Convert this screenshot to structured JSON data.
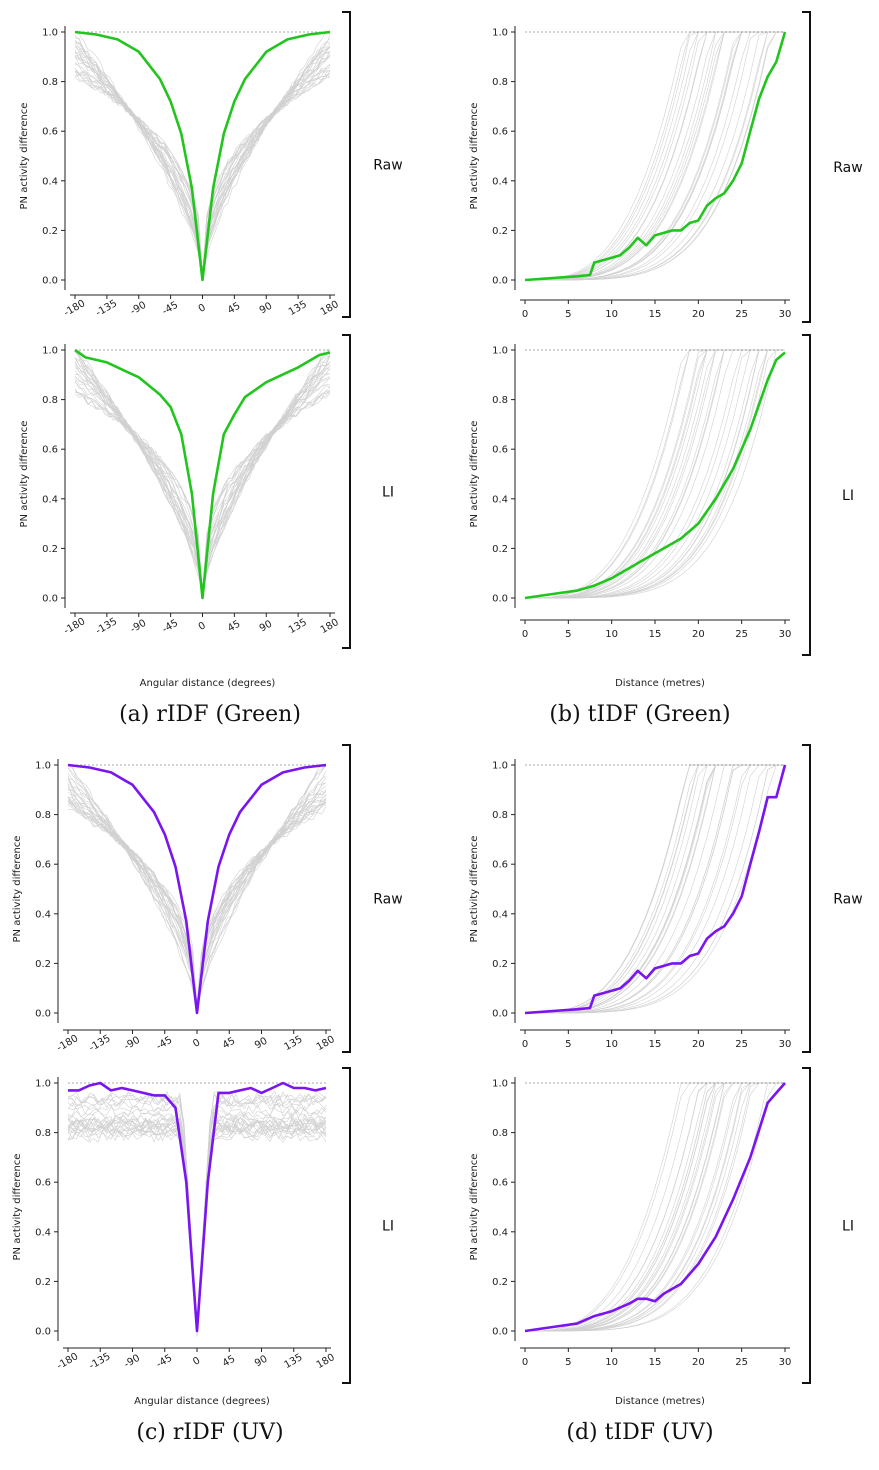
{
  "colors": {
    "green": "#22c41e",
    "uv": "#7a14f0",
    "trials": "#000000",
    "reference": "#aaaaaa"
  },
  "ylabel": "PN activity difference",
  "yticks": [
    "0.0",
    "0.2",
    "0.4",
    "0.6",
    "0.8",
    "1.0"
  ],
  "rotation": {
    "xlabel": "Angular distance (degrees)",
    "xticks": [
      "-180",
      "-135",
      "-90",
      "-45",
      "0",
      "45",
      "90",
      "135",
      "180"
    ]
  },
  "translation": {
    "xlabel": "Distance (metres)",
    "xticks": [
      "0",
      "5",
      "10",
      "15",
      "20",
      "25",
      "30"
    ]
  },
  "brackets": {
    "raw": "Raw",
    "li": "LI"
  },
  "captions": {
    "a": "(a) rIDF (Green)",
    "b": "(b) tIDF (Green)",
    "c": "(c) rIDF (UV)",
    "d": "(d) tIDF (UV)"
  },
  "chart_data": [
    {
      "panel": "a",
      "type": "line",
      "row": "Raw",
      "color": "green",
      "x": [
        -180,
        -150,
        -120,
        -90,
        -60,
        -45,
        -30,
        -15,
        0,
        15,
        30,
        45,
        60,
        90,
        120,
        150,
        180
      ],
      "y": [
        1.0,
        0.99,
        0.97,
        0.92,
        0.81,
        0.72,
        0.59,
        0.37,
        0.0,
        0.37,
        0.59,
        0.72,
        0.81,
        0.92,
        0.97,
        0.99,
        1.0
      ],
      "xlim": [
        -180,
        180
      ],
      "ylim": [
        0,
        1
      ]
    },
    {
      "panel": "a",
      "type": "line",
      "row": "LI",
      "color": "green",
      "x": [
        -180,
        -165,
        -150,
        -135,
        -90,
        -60,
        -45,
        -30,
        -15,
        0,
        15,
        30,
        45,
        60,
        90,
        135,
        165,
        180
      ],
      "y": [
        1.0,
        0.97,
        0.96,
        0.95,
        0.89,
        0.82,
        0.77,
        0.66,
        0.42,
        0.0,
        0.42,
        0.66,
        0.74,
        0.81,
        0.87,
        0.93,
        0.98,
        0.99
      ],
      "xlim": [
        -180,
        180
      ],
      "ylim": [
        0,
        1
      ]
    },
    {
      "panel": "b",
      "type": "line",
      "row": "Raw",
      "color": "green",
      "x": [
        0,
        2,
        4,
        6,
        7.5,
        8,
        10,
        11,
        12,
        13,
        14,
        15,
        16,
        17,
        18,
        19,
        20,
        21,
        22,
        23,
        24,
        25,
        26,
        27,
        28,
        29,
        30
      ],
      "y": [
        0.0,
        0.005,
        0.01,
        0.015,
        0.02,
        0.07,
        0.09,
        0.1,
        0.13,
        0.17,
        0.14,
        0.18,
        0.19,
        0.2,
        0.2,
        0.23,
        0.24,
        0.3,
        0.33,
        0.35,
        0.4,
        0.47,
        0.6,
        0.73,
        0.82,
        0.88,
        1.0
      ],
      "xlim": [
        0,
        30
      ],
      "ylim": [
        0,
        1
      ]
    },
    {
      "panel": "b",
      "type": "line",
      "row": "LI",
      "color": "green",
      "x": [
        0,
        2,
        4,
        6,
        8,
        10,
        12,
        14,
        16,
        18,
        20,
        22,
        24,
        26,
        28,
        29,
        30
      ],
      "y": [
        0.0,
        0.01,
        0.02,
        0.03,
        0.05,
        0.08,
        0.12,
        0.16,
        0.2,
        0.24,
        0.3,
        0.4,
        0.52,
        0.68,
        0.88,
        0.96,
        0.99
      ],
      "xlim": [
        0,
        30
      ],
      "ylim": [
        0,
        1
      ]
    },
    {
      "panel": "c",
      "type": "line",
      "row": "Raw",
      "color": "uv",
      "x": [
        -180,
        -150,
        -120,
        -90,
        -60,
        -45,
        -30,
        -15,
        0,
        15,
        30,
        45,
        60,
        90,
        120,
        150,
        180
      ],
      "y": [
        1.0,
        0.99,
        0.97,
        0.92,
        0.81,
        0.72,
        0.59,
        0.37,
        0.0,
        0.37,
        0.59,
        0.72,
        0.81,
        0.92,
        0.97,
        0.99,
        1.0
      ],
      "xlim": [
        -180,
        180
      ],
      "ylim": [
        0,
        1
      ]
    },
    {
      "panel": "c",
      "type": "line",
      "row": "LI",
      "color": "uv",
      "x": [
        -180,
        -165,
        -150,
        -135,
        -120,
        -105,
        -90,
        -75,
        -60,
        -45,
        -30,
        -15,
        -10,
        -5,
        0,
        5,
        10,
        15,
        30,
        45,
        60,
        75,
        90,
        105,
        120,
        135,
        150,
        165,
        180
      ],
      "y": [
        0.97,
        0.97,
        0.99,
        1.0,
        0.97,
        0.98,
        0.97,
        0.96,
        0.95,
        0.95,
        0.9,
        0.6,
        0.4,
        0.2,
        0.0,
        0.2,
        0.4,
        0.6,
        0.96,
        0.96,
        0.97,
        0.98,
        0.96,
        0.98,
        1.0,
        0.98,
        0.98,
        0.97,
        0.98
      ],
      "xlim": [
        -180,
        180
      ],
      "ylim": [
        0,
        1
      ]
    },
    {
      "panel": "d",
      "type": "line",
      "row": "Raw",
      "color": "uv",
      "x": [
        0,
        2,
        4,
        6,
        7.5,
        8,
        10,
        11,
        12,
        13,
        14,
        15,
        16,
        17,
        18,
        19,
        20,
        21,
        22,
        23,
        24,
        25,
        26,
        27,
        28,
        29,
        30
      ],
      "y": [
        0.0,
        0.005,
        0.01,
        0.015,
        0.02,
        0.07,
        0.09,
        0.1,
        0.13,
        0.17,
        0.14,
        0.18,
        0.19,
        0.2,
        0.2,
        0.23,
        0.24,
        0.3,
        0.33,
        0.35,
        0.4,
        0.47,
        0.6,
        0.73,
        0.87,
        0.87,
        1.0
      ],
      "xlim": [
        0,
        30
      ],
      "ylim": [
        0,
        1
      ]
    },
    {
      "panel": "d",
      "type": "line",
      "row": "LI",
      "color": "uv",
      "x": [
        0,
        2,
        4,
        6,
        8,
        10,
        12,
        13,
        14,
        15,
        16,
        18,
        20,
        22,
        24,
        26,
        28,
        29,
        30
      ],
      "y": [
        0.0,
        0.01,
        0.02,
        0.03,
        0.06,
        0.08,
        0.11,
        0.13,
        0.13,
        0.12,
        0.15,
        0.19,
        0.27,
        0.38,
        0.53,
        0.7,
        0.92,
        0.96,
        1.0
      ],
      "xlim": [
        0,
        30
      ],
      "ylim": [
        0,
        1
      ]
    }
  ]
}
